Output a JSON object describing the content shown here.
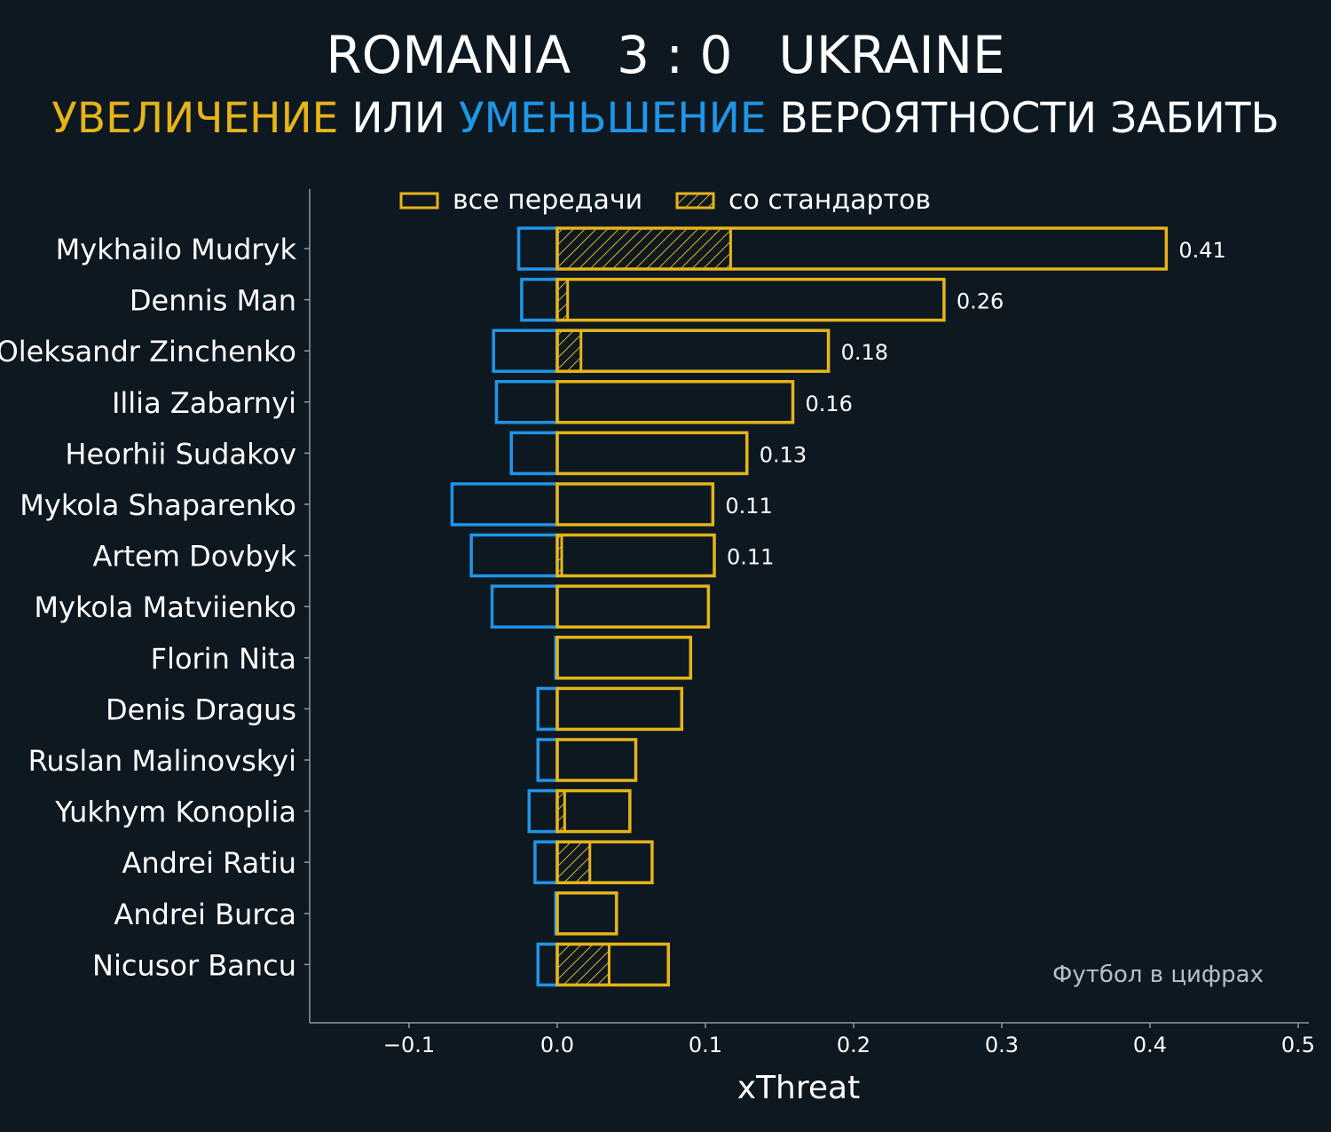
{
  "header": {
    "team_home": "ROMANIA",
    "score": "3 : 0",
    "team_away": "UKRAINE",
    "subtitle_increase": "УВЕЛИЧЕНИЕ",
    "subtitle_or": "ИЛИ",
    "subtitle_decrease": "УМЕНЬШЕНИЕ",
    "subtitle_rest": "ВЕРОЯТНОСТИ ЗАБИТЬ"
  },
  "colors": {
    "background": "#0e1821",
    "increase": "#e6b41a",
    "decrease": "#1e96e8",
    "axis": "#8a9aa0"
  },
  "watermark": "Футбол в цифрах",
  "chart_data": {
    "type": "bar",
    "orientation": "horizontal",
    "xlabel": "xThreat",
    "xlim": [
      -0.167,
      0.507
    ],
    "xticks": [
      -0.1,
      0.0,
      0.1,
      0.2,
      0.3,
      0.4,
      0.5
    ],
    "xtick_labels": [
      "−0.1",
      "0.0",
      "0.1",
      "0.2",
      "0.3",
      "0.4",
      "0.5"
    ],
    "legend": {
      "placement": "top",
      "entries": [
        "все передачи",
        "со стандартов"
      ]
    },
    "categories": [
      "Mykhailo Mudryk",
      "Dennis Man",
      "Oleksandr Zinchenko",
      "Illia Zabarnyi",
      "Heorhii Sudakov",
      "Mykola Shaparenko",
      "Artem Dovbyk",
      "Mykola Matviienko",
      "Florin Nita",
      "Denis Dragus",
      "Ruslan Malinovskyi",
      "Yukhym Konoplia",
      "Andrei Ratiu",
      "Andrei Burca",
      "Nicusor Bancu"
    ],
    "series": [
      {
        "name": "все передачи (positive)",
        "values": [
          0.411,
          0.261,
          0.183,
          0.159,
          0.128,
          0.105,
          0.106,
          0.102,
          0.09,
          0.084,
          0.053,
          0.049,
          0.064,
          0.04,
          0.075
        ]
      },
      {
        "name": "negative",
        "values": [
          -0.026,
          -0.024,
          -0.043,
          -0.041,
          -0.031,
          -0.071,
          -0.058,
          -0.044,
          -0.001,
          -0.013,
          -0.013,
          -0.019,
          -0.015,
          -0.001,
          -0.013
        ]
      },
      {
        "name": "со стандартов",
        "values": [
          0.117,
          0.007,
          0.016,
          0,
          0,
          0,
          0.003,
          0,
          0,
          0,
          0,
          0.005,
          0.022,
          0,
          0.035
        ]
      }
    ],
    "data_labels": [
      "0.41",
      "0.26",
      "0.18",
      "0.16",
      "0.13",
      "0.11",
      "0.11",
      "",
      "",
      "",
      "",
      "",
      "",
      "",
      ""
    ]
  }
}
